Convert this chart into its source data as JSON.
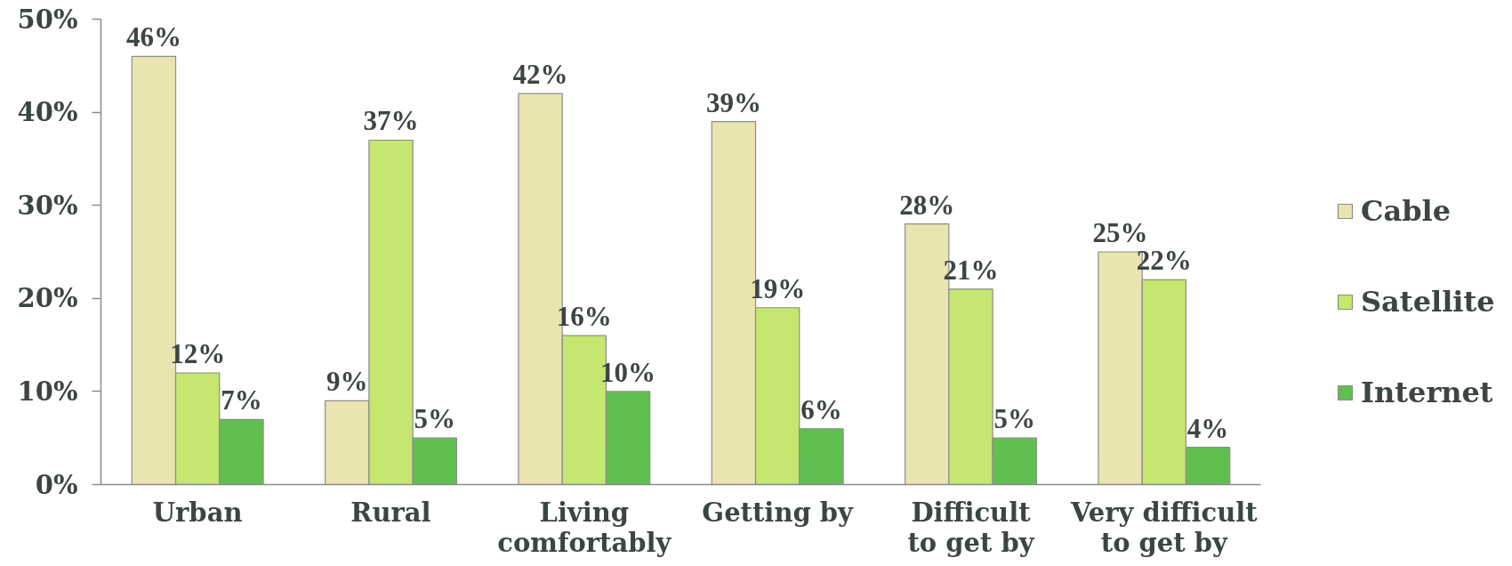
{
  "chart_data": {
    "type": "bar",
    "categories": [
      "Urban",
      "Rural",
      "Living\ncomfortably",
      "Getting by",
      "Difficult\nto get by",
      "Very difficult\nto get by"
    ],
    "series": [
      {
        "name": "Cable",
        "color": "#e9e4b0",
        "values": [
          46,
          9,
          42,
          39,
          28,
          25
        ],
        "value_labels": [
          "46%",
          "9%",
          "42%",
          "39%",
          "28%",
          "25%"
        ]
      },
      {
        "name": "Satellite",
        "color": "#c5e66f",
        "values": [
          12,
          37,
          16,
          19,
          21,
          22
        ],
        "value_labels": [
          "12%",
          "37%",
          "16%",
          "19%",
          "21%",
          "22%"
        ]
      },
      {
        "name": "Internet",
        "color": "#60c04f",
        "values": [
          7,
          5,
          10,
          6,
          5,
          4
        ],
        "value_labels": [
          "7%",
          "5%",
          "10%",
          "6%",
          "5%",
          "4%"
        ]
      }
    ],
    "ylim": [
      0,
      50
    ],
    "yticks": [
      {
        "value": 0,
        "label": "0%"
      },
      {
        "value": 10,
        "label": "10%"
      },
      {
        "value": 20,
        "label": "20%"
      },
      {
        "value": 30,
        "label": "30%"
      },
      {
        "value": 40,
        "label": "40%"
      },
      {
        "value": 50,
        "label": "50%"
      }
    ],
    "legend": "right"
  }
}
